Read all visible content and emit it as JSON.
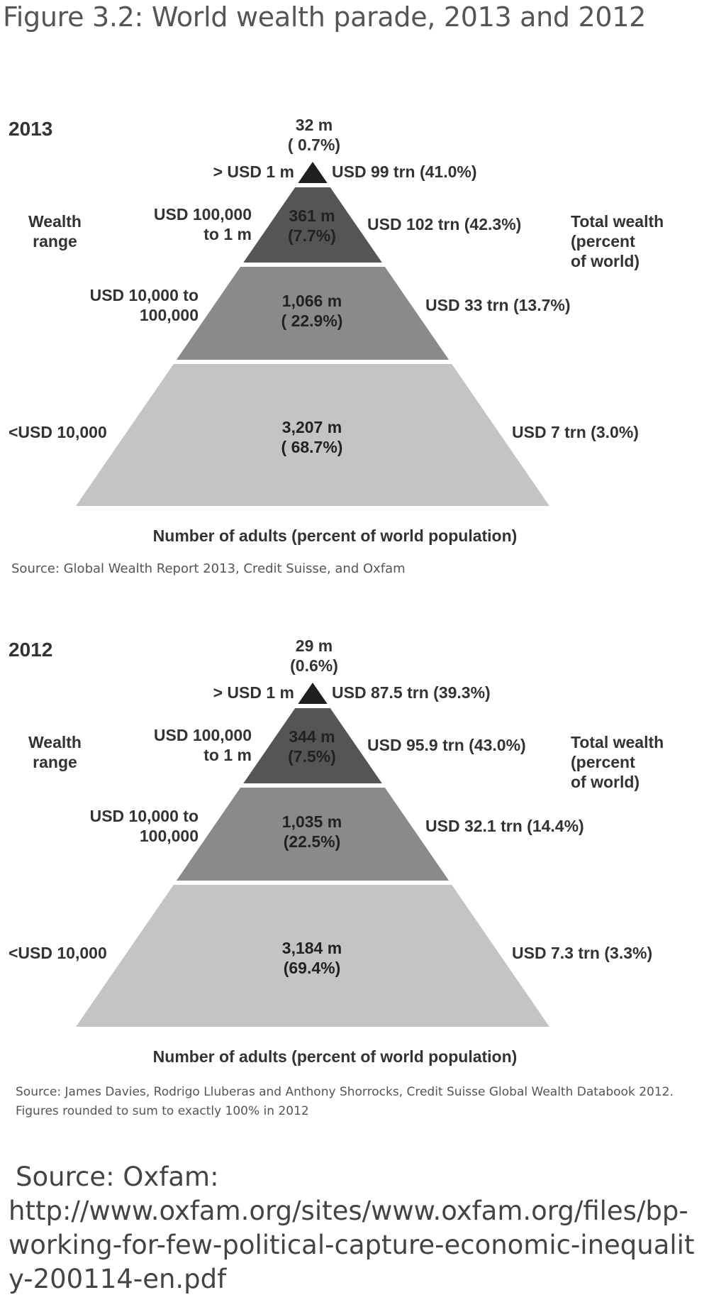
{
  "figure_title": "Figure 3.2:  World wealth parade, 2013 and 2012",
  "bottom_source": {
    "line1": "Source:  Oxfam:",
    "line2": "http://www.oxfam.org/sites/www.oxfam.org/files/bp-working-for-few-political-capture-economic-inequality-200114-en.pdf"
  },
  "colors": {
    "tier_top": "#1f1f1f",
    "tier_2": "#555555",
    "tier_3": "#8a8a8a",
    "tier_base": "#c4c4c4"
  },
  "chart_data": [
    {
      "type": "pyramid",
      "year": "2013",
      "left_axis_title": [
        "Wealth",
        "range"
      ],
      "right_axis_title": [
        "Total wealth",
        "(percent",
        "of world)"
      ],
      "xlabel": "Number of adults (percent of world population)",
      "source": [
        "Source: Global Wealth Report 2013, Credit Suisse, and Oxfam"
      ],
      "tiers": [
        {
          "range": [
            "> USD 1 m"
          ],
          "adults": "32 m",
          "adults_pct": "( 0.7%)",
          "wealth": "USD 99 trn (41.0%)",
          "adults_m": 32,
          "adults_share": 0.7,
          "wealth_trn": 99,
          "wealth_share": 41.0
        },
        {
          "range": [
            "USD 100,000",
            "to 1 m"
          ],
          "adults": "361 m",
          "adults_pct": "(7.7%)",
          "wealth": "USD 102 trn (42.3%)",
          "adults_m": 361,
          "adults_share": 7.7,
          "wealth_trn": 102,
          "wealth_share": 42.3
        },
        {
          "range": [
            "USD 10,000 to",
            "100,000"
          ],
          "adults": "1,066 m",
          "adults_pct": "( 22.9%)",
          "wealth": "USD 33 trn (13.7%)",
          "adults_m": 1066,
          "adults_share": 22.9,
          "wealth_trn": 33,
          "wealth_share": 13.7
        },
        {
          "range": [
            "<USD 10,000"
          ],
          "adults": "3,207 m",
          "adults_pct": "( 68.7%)",
          "wealth": "USD 7 trn (3.0%)",
          "adults_m": 3207,
          "adults_share": 68.7,
          "wealth_trn": 7,
          "wealth_share": 3.0
        }
      ]
    },
    {
      "type": "pyramid",
      "year": "2012",
      "left_axis_title": [
        "Wealth",
        "range"
      ],
      "right_axis_title": [
        "Total wealth",
        "(percent",
        "of world)"
      ],
      "xlabel": "Number of adults (percent of world population)",
      "source": [
        "Source: James Davies, Rodrigo Lluberas and Anthony Shorrocks, Credit Suisse Global Wealth Databook 2012.",
        "Figures rounded to sum to exactly 100% in 2012"
      ],
      "tiers": [
        {
          "range": [
            "> USD 1 m"
          ],
          "adults": "29 m",
          "adults_pct": "(0.6%)",
          "wealth": "USD 87.5 trn (39.3%)",
          "adults_m": 29,
          "adults_share": 0.6,
          "wealth_trn": 87.5,
          "wealth_share": 39.3
        },
        {
          "range": [
            "USD 100,000",
            "to 1 m"
          ],
          "adults": "344 m",
          "adults_pct": "(7.5%)",
          "wealth": "USD 95.9 trn (43.0%)",
          "adults_m": 344,
          "adults_share": 7.5,
          "wealth_trn": 95.9,
          "wealth_share": 43.0
        },
        {
          "range": [
            "USD 10,000 to",
            "100,000"
          ],
          "adults": "1,035 m",
          "adults_pct": "(22.5%)",
          "wealth": "USD 32.1 trn (14.4%)",
          "adults_m": 1035,
          "adults_share": 22.5,
          "wealth_trn": 32.1,
          "wealth_share": 14.4
        },
        {
          "range": [
            "<USD 10,000"
          ],
          "adults": "3,184 m",
          "adults_pct": "(69.4%)",
          "wealth": "USD 7.3 trn (3.3%)",
          "adults_m": 3184,
          "adults_share": 69.4,
          "wealth_trn": 7.3,
          "wealth_share": 3.3
        }
      ]
    }
  ]
}
